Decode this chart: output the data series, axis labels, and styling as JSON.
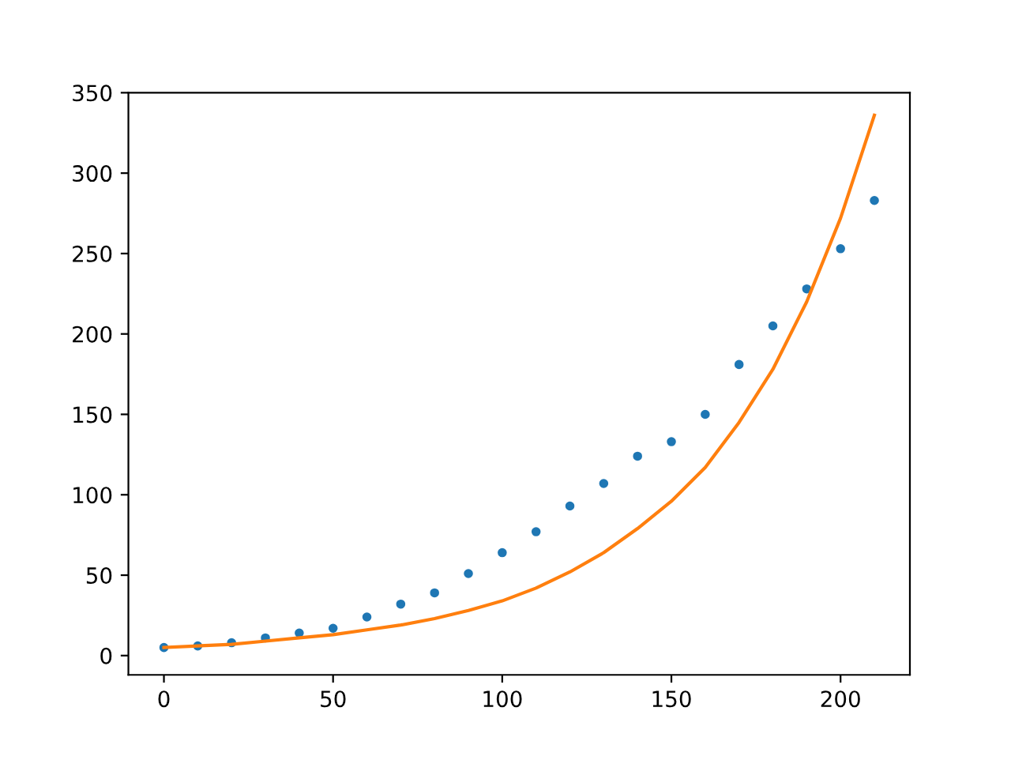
{
  "chart_data": {
    "type": "scatter",
    "x": [
      0,
      10,
      20,
      30,
      40,
      50,
      60,
      70,
      80,
      90,
      100,
      110,
      120,
      130,
      140,
      150,
      160,
      170,
      180,
      190,
      200,
      210
    ],
    "series": [
      {
        "type": "scatter",
        "color": "#1f77b4",
        "marker": "circle",
        "values": [
          5,
          6,
          8,
          11,
          14,
          17,
          24,
          32,
          39,
          51,
          64,
          77,
          93,
          107,
          124,
          133,
          150,
          181,
          205,
          228,
          253,
          283
        ]
      },
      {
        "type": "line",
        "color": "#ff7f0e",
        "marker": "none",
        "line_style": "solid",
        "values": [
          5,
          6,
          7,
          9,
          11,
          13,
          16,
          19,
          23,
          28,
          34,
          42,
          52,
          64,
          79,
          96,
          117,
          145,
          178,
          220,
          272,
          336
        ]
      }
    ],
    "xlim": [
      -10.5,
      220.5
    ],
    "ylim": [
      -12,
      350
    ],
    "xticks": [
      0,
      50,
      100,
      150,
      200
    ],
    "yticks": [
      0,
      50,
      100,
      150,
      200,
      250,
      300,
      350
    ],
    "grid": false,
    "legend": false
  }
}
